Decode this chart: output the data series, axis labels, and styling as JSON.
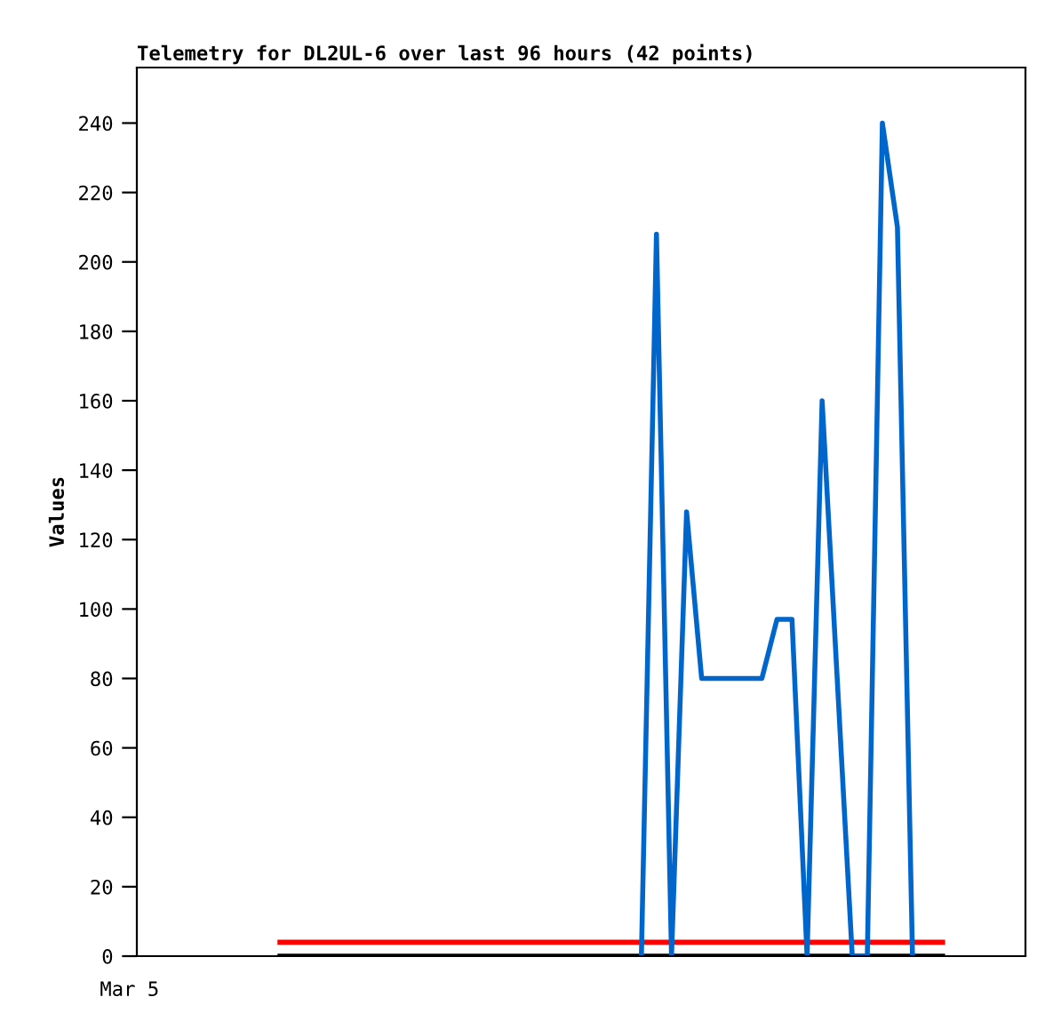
{
  "chart_data": {
    "type": "line",
    "title": "Telemetry for DL2UL-6 over last 96 hours (42 points)",
    "ylabel": "Values",
    "categories": [
      null,
      null,
      null,
      null,
      null,
      null,
      null,
      null,
      null,
      null,
      null,
      null,
      null,
      null,
      null,
      null,
      null,
      null,
      null,
      null,
      null,
      null,
      null,
      null,
      null,
      null,
      null,
      null,
      null,
      null,
      null,
      null,
      null,
      null,
      null,
      null,
      null,
      null,
      null,
      null,
      null,
      null,
      null,
      null,
      null,
      null,
      null,
      null,
      null,
      null,
      null,
      null,
      null,
      null,
      null,
      null,
      null,
      null,
      null
    ],
    "annotations": [
      "Mar 5"
    ],
    "ylim": [
      0,
      256
    ],
    "yticks": [
      0,
      20,
      40,
      60,
      80,
      100,
      120,
      140,
      160,
      180,
      200,
      220,
      240
    ],
    "series": [
      {
        "color": "#ff0000",
        "values": [
          null,
          null,
          null,
          null,
          null,
          null,
          null,
          null,
          null,
          4,
          4,
          4,
          4,
          4,
          4,
          4,
          4,
          4,
          4,
          4,
          4,
          4,
          4,
          4,
          4,
          4,
          4,
          4,
          4,
          4,
          4,
          4,
          4,
          4,
          4,
          4,
          4,
          4,
          4,
          4,
          4,
          4,
          4,
          4,
          4,
          4,
          4,
          4,
          4,
          4,
          4,
          4,
          4,
          4,
          null,
          null,
          null,
          null,
          null
        ]
      },
      {
        "color": "#000000",
        "values": [
          null,
          null,
          null,
          null,
          null,
          null,
          null,
          null,
          null,
          0,
          0,
          0,
          0,
          0,
          0,
          0,
          0,
          0,
          0,
          0,
          0,
          0,
          0,
          0,
          0,
          0,
          0,
          0,
          0,
          0,
          0,
          0,
          0,
          0,
          0,
          0,
          0,
          0,
          0,
          0,
          0,
          0,
          0,
          0,
          0,
          0,
          0,
          0,
          0,
          0,
          0,
          0,
          0,
          0,
          null,
          null,
          null,
          null,
          null
        ]
      },
      {
        "color": "#0066cc",
        "values": [
          null,
          null,
          null,
          null,
          null,
          null,
          null,
          null,
          null,
          null,
          null,
          null,
          null,
          null,
          null,
          null,
          null,
          null,
          null,
          null,
          null,
          null,
          null,
          null,
          null,
          null,
          null,
          null,
          null,
          null,
          null,
          null,
          null,
          0,
          208,
          0,
          128,
          80,
          80,
          80,
          80,
          80,
          97,
          97,
          0,
          160,
          80,
          0,
          0,
          240,
          210,
          0,
          null,
          null,
          null,
          null,
          null,
          null,
          null
        ]
      }
    ]
  }
}
